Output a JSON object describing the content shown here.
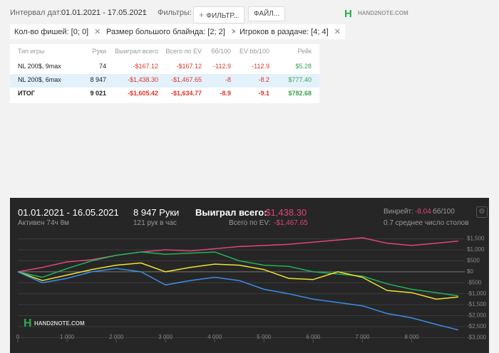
{
  "toolbar": {
    "interval_label": "Интервал дат:",
    "interval": "01.01.2021 - 17.05.2021",
    "filters_label": "Фильтры:",
    "filter_button": "ФИЛЬТР...",
    "files_button": "ФАЙЛ...",
    "logo": "HAND2NOTE.COM"
  },
  "chips": [
    "Кол-во фишей: [0; 0]",
    "Размер большого блайнда: [2; 2]",
    "Игроков в раздаче: [4; 4]"
  ],
  "table": {
    "headers": [
      "Тип игры",
      "Руки",
      "Выиграл всего",
      "Всего по EV",
      "бб/100",
      "EV bb/100",
      "Рейк"
    ],
    "rows": [
      [
        "NL 200$, 9max",
        "74",
        "-$167.12",
        "-$167.12",
        "-112.9",
        "-112.9",
        "$5.28"
      ],
      [
        "NL 200$, 6max",
        "8 947",
        "-$1,438.30",
        "-$1,467.65",
        "-8",
        "-8.2",
        "$777.40"
      ],
      [
        "ИТОГ",
        "9 021",
        "-$1,605.42",
        "-$1,634.77",
        "-8.9",
        "-9.1",
        "$782.68"
      ]
    ]
  },
  "summary": {
    "dates": "01.01.2021 - 16.05.2021",
    "hands": "8 947 Руки",
    "active": "Активен 74ч 8м",
    "per_hour": "121 рук в час",
    "won_label": "Выиграл всего:",
    "won": "-$1,438.30",
    "ev_label": "Всего по EV:",
    "ev": "-$1,467.65",
    "winrate_label": "Винрейт:",
    "winrate": "-8.04",
    "winrate_unit": "бб/100",
    "tables": "0.7 среднее число столов",
    "logo": "HAND2NOTE.COM"
  },
  "chart_data": {
    "type": "line",
    "x": [
      0,
      500,
      1000,
      1500,
      2000,
      2500,
      3000,
      3500,
      4000,
      4500,
      5000,
      5500,
      6000,
      6500,
      7000,
      7500,
      8000,
      8500,
      8947
    ],
    "series": [
      {
        "color": "#e0457b",
        "values": [
          0,
          200,
          450,
          550,
          750,
          900,
          1000,
          950,
          1050,
          1150,
          1200,
          1250,
          1350,
          1450,
          1550,
          1300,
          1200,
          1300,
          1400
        ]
      },
      {
        "color": "#21b35a",
        "values": [
          0,
          -250,
          150,
          500,
          750,
          900,
          800,
          850,
          900,
          500,
          300,
          250,
          0,
          -100,
          -200,
          -550,
          -800,
          -950,
          -1100
        ]
      },
      {
        "color": "#f0e130",
        "values": [
          0,
          -400,
          -150,
          100,
          300,
          400,
          0,
          200,
          350,
          300,
          100,
          -300,
          -350,
          0,
          -250,
          -850,
          -950,
          -1250,
          -1150
        ]
      },
      {
        "color": "#3a8ee6",
        "values": [
          0,
          -500,
          -300,
          0,
          150,
          0,
          -600,
          -400,
          -250,
          -400,
          -800,
          -1000,
          -1250,
          -1400,
          -1550,
          -1900,
          -2100,
          -2400,
          -2650
        ]
      }
    ],
    "xlim": [
      0,
      9050
    ],
    "xticks": [
      0,
      {
        "value": 1000,
        "label": "1 000"
      },
      {
        "value": 2000,
        "label": "2 000"
      },
      {
        "value": 3000,
        "label": "3 000"
      },
      {
        "value": 4000,
        "label": "4 000"
      },
      {
        "value": 5000,
        "label": "5 000"
      },
      {
        "value": 6000,
        "label": "6 000"
      },
      {
        "value": 7000,
        "label": "7 000"
      },
      {
        "value": 8000,
        "label": "8 000"
      }
    ],
    "ylim": [
      -3150,
      1650
    ],
    "yticks": [
      {
        "value": 1500,
        "label": "$1,500"
      },
      {
        "value": 1000,
        "label": "$1,000"
      },
      {
        "value": 500,
        "label": "$500"
      },
      {
        "value": 0,
        "label": "$0"
      },
      {
        "value": -500,
        "label": "-$500"
      },
      {
        "value": -1000,
        "label": "-$1,000"
      },
      {
        "value": -1500,
        "label": "-$1,500"
      },
      {
        "value": -2000,
        "label": "-$2,000"
      },
      {
        "value": -2500,
        "label": "-$2,500"
      },
      {
        "value": -3000,
        "label": "-$3,000"
      }
    ],
    "grid": true
  }
}
